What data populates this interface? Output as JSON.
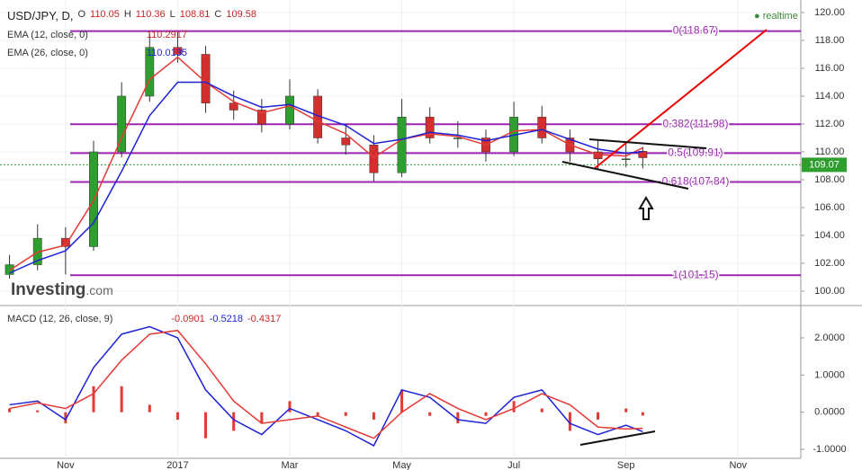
{
  "chart_data": [
    {
      "type": "candlestick",
      "title": "USD/JPY, D,",
      "ohlc_labels": [
        "O",
        "H",
        "L",
        "C"
      ],
      "ohlc_values": [
        110.05,
        110.36,
        108.81,
        109.58
      ],
      "x": [
        -1,
        -0.5,
        0,
        0.5,
        1,
        1.5,
        2,
        2.5,
        3,
        3.5,
        4,
        4.5,
        5,
        5.5,
        6,
        6.5,
        7,
        7.5,
        8,
        8.5,
        9,
        9.5,
        10,
        10.3
      ],
      "open": [
        101.2,
        101.9,
        103.8,
        103.2,
        110.0,
        114.0,
        117.5,
        117.0,
        113.5,
        113.0,
        112.0,
        114.0,
        111.0,
        110.5,
        108.5,
        112.5,
        111.0,
        111.0,
        110.0,
        112.5,
        111.0,
        110.0,
        109.5,
        110.05
      ],
      "high": [
        102.6,
        104.8,
        104.6,
        110.8,
        115.0,
        118.5,
        118.6,
        117.6,
        114.4,
        113.8,
        115.2,
        114.5,
        112.0,
        111.2,
        113.8,
        113.2,
        112.2,
        111.6,
        113.6,
        113.3,
        111.6,
        110.8,
        110.6,
        110.36
      ],
      "low": [
        100.9,
        101.5,
        101.2,
        102.9,
        109.6,
        113.6,
        116.4,
        112.8,
        112.3,
        111.4,
        111.6,
        110.6,
        109.8,
        107.9,
        108.2,
        110.6,
        110.3,
        109.3,
        109.7,
        110.6,
        109.3,
        108.7,
        108.9,
        108.81
      ],
      "close": [
        101.9,
        103.8,
        103.2,
        110.0,
        114.0,
        117.5,
        117.0,
        113.5,
        113.0,
        112.0,
        114.0,
        111.0,
        110.5,
        108.5,
        112.5,
        111.0,
        111.0,
        110.0,
        112.5,
        111.0,
        110.0,
        109.5,
        109.5,
        109.58
      ],
      "up_color": "#2e9e2e",
      "down_color": "#d32f2f",
      "series": [
        {
          "name": "EMA (12, close, 0)",
          "color": "#e53935",
          "values": [
            101.5,
            102.8,
            103.3,
            106.5,
            111.0,
            115.2,
            116.8,
            115.0,
            113.6,
            112.8,
            113.3,
            112.2,
            111.3,
            109.6,
            110.9,
            111.3,
            111.1,
            110.5,
            111.5,
            111.6,
            110.5,
            109.8,
            109.7,
            110.2917
          ]
        },
        {
          "name": "EMA (26, close, 0)",
          "color": "#1e22d4",
          "values": [
            101.3,
            102.2,
            102.9,
            104.9,
            108.6,
            112.6,
            115.0,
            115.0,
            114.0,
            113.2,
            113.4,
            112.6,
            111.9,
            110.6,
            110.9,
            111.4,
            111.2,
            110.8,
            111.2,
            111.6,
            110.9,
            110.2,
            109.9,
            110.0135
          ]
        }
      ],
      "levels": [
        {
          "value": 118.67,
          "label": "0(118.67)"
        },
        {
          "value": 111.98,
          "label": "0.382(111.98)"
        },
        {
          "value": 109.91,
          "label": "0.5(109.91)"
        },
        {
          "value": 107.84,
          "label": "0.618(107.84)"
        },
        {
          "value": 101.15,
          "label": "1(101.15)"
        }
      ],
      "level_color": "#9c27b0",
      "last_price": 109.07,
      "realtime": "realtime",
      "logo": [
        "Investing",
        ".com"
      ],
      "xlim": [
        -1.17,
        13.12
      ],
      "ylim": [
        98.97,
        120.9
      ],
      "yticks": [
        {
          "value": 100,
          "label": "100.00"
        },
        {
          "value": 102,
          "label": "102.00"
        },
        {
          "value": 104,
          "label": "104.00"
        },
        {
          "value": 106,
          "label": "106.00"
        },
        {
          "value": 108,
          "label": "108.00"
        },
        {
          "value": 110,
          "label": "110.00"
        },
        {
          "value": 112,
          "label": "112.00"
        },
        {
          "value": 114,
          "label": "114.00"
        },
        {
          "value": 116,
          "label": "116.00"
        },
        {
          "value": 118,
          "label": "118.00"
        },
        {
          "value": 120,
          "label": "120.00"
        }
      ],
      "grid": true
    },
    {
      "type": "macd",
      "title": "MACD (12, 26, close, 9)",
      "x": [
        -1,
        -0.5,
        0,
        0.5,
        1,
        1.5,
        2,
        2.5,
        3,
        3.5,
        4,
        4.5,
        5,
        5.5,
        6,
        6.5,
        7,
        7.5,
        8,
        8.5,
        9,
        9.5,
        10,
        10.3
      ],
      "histogram": {
        "color": "#e53935",
        "values": [
          0.1,
          0.05,
          -0.3,
          0.7,
          0.7,
          0.2,
          -0.2,
          -0.7,
          -0.5,
          -0.3,
          0.3,
          -0.1,
          -0.1,
          -0.2,
          0.6,
          -0.1,
          -0.3,
          -0.1,
          0.3,
          0.1,
          -0.5,
          -0.2,
          0.1,
          -0.0901
        ]
      },
      "series": [
        {
          "color": "#1e22d4",
          "values": [
            0.2,
            0.3,
            -0.2,
            1.2,
            2.1,
            2.3,
            2.0,
            0.6,
            -0.2,
            -0.6,
            0.1,
            -0.2,
            -0.5,
            -0.9,
            0.6,
            0.4,
            -0.2,
            -0.3,
            0.4,
            0.6,
            -0.3,
            -0.6,
            -0.35,
            -0.5218
          ]
        },
        {
          "color": "#e53935",
          "values": [
            0.1,
            0.25,
            0.1,
            0.5,
            1.4,
            2.1,
            2.2,
            1.3,
            0.3,
            -0.3,
            -0.2,
            -0.1,
            -0.4,
            -0.7,
            0.0,
            0.5,
            0.1,
            -0.2,
            0.1,
            0.5,
            0.2,
            -0.4,
            -0.45,
            -0.4317
          ]
        }
      ],
      "xlim": [
        -1.17,
        13.12
      ],
      "ylim": [
        -1.24,
        2.87
      ],
      "yticks": [
        {
          "value": -1,
          "label": "-1.0000"
        },
        {
          "value": 0,
          "label": "0.0000"
        },
        {
          "value": 1,
          "label": "1.0000"
        },
        {
          "value": 2,
          "label": "2.0000"
        }
      ],
      "xticks": [
        {
          "value": 0,
          "label": "Nov"
        },
        {
          "value": 2,
          "label": "2017"
        },
        {
          "value": 4,
          "label": "Mar"
        },
        {
          "value": 6,
          "label": "May"
        },
        {
          "value": 8,
          "label": "Jul"
        },
        {
          "value": 10,
          "label": "Sep"
        },
        {
          "value": 12,
          "label": "Nov"
        }
      ],
      "grid": true
    }
  ]
}
